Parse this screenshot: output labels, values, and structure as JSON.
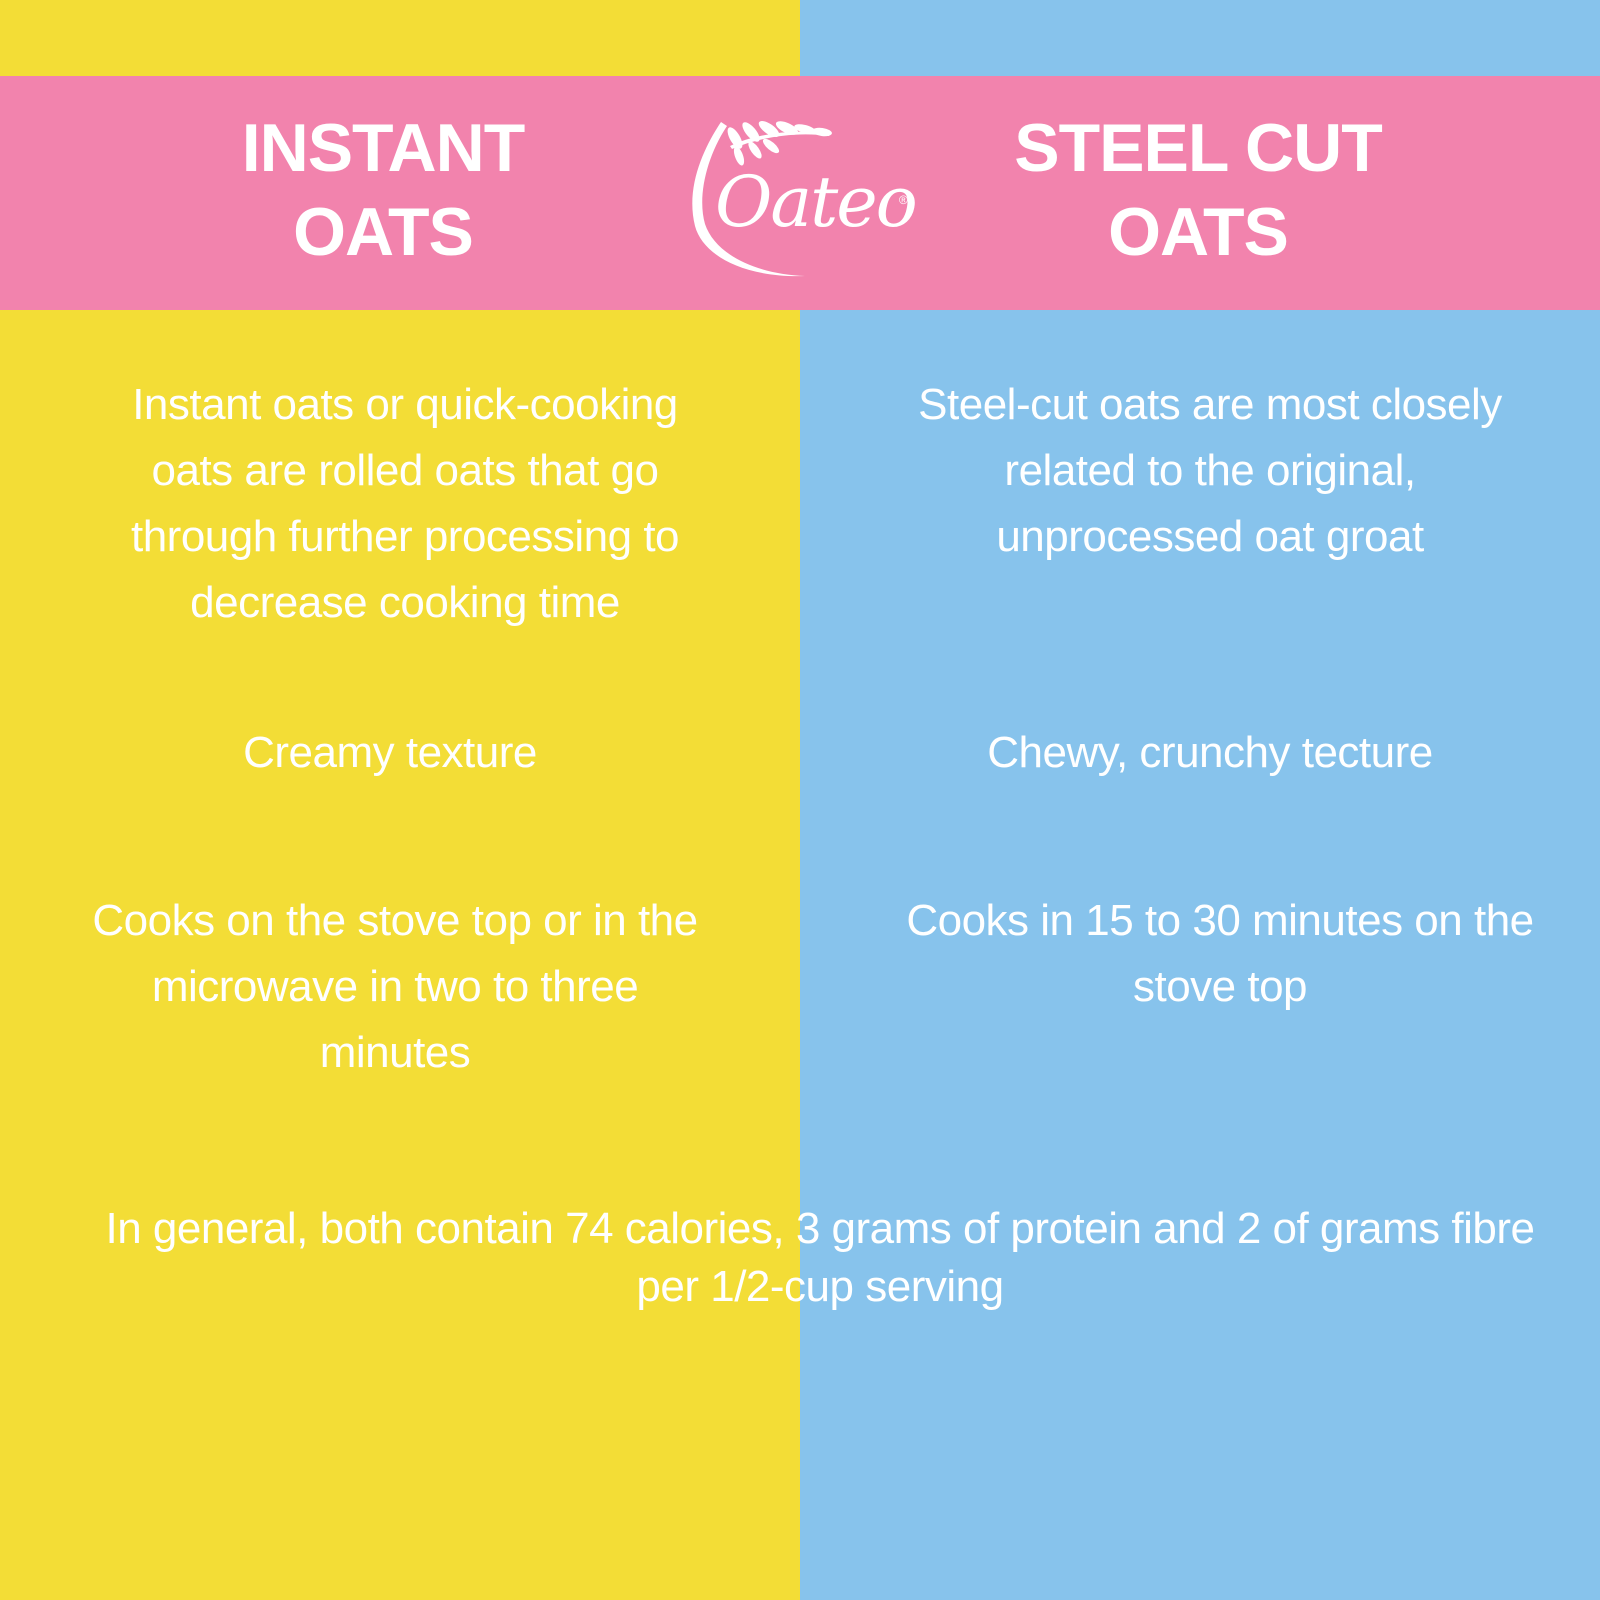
{
  "colors": {
    "left_panel": "#f3dd36",
    "right_panel": "#87c3ec",
    "banner": "#f283ad",
    "text": "#ffffff"
  },
  "header": {
    "left_title": "INSTANT\nOATS",
    "right_title": "STEEL CUT\nOATS"
  },
  "logo": {
    "wordmark": "Oateo",
    "registered": "®",
    "icon": "oat-stalk-icon"
  },
  "rows": {
    "definition": {
      "instant": "Instant oats or quick-cooking oats are rolled oats that go through further processing to decrease cooking time",
      "steel_cut": "Steel-cut oats are most closely related to the original, unprocessed oat groat"
    },
    "texture": {
      "instant": "Creamy texture",
      "steel_cut": "Chewy, crunchy tecture"
    },
    "cooking": {
      "instant": "Cooks on the stove top or in the microwave in two to three minutes",
      "steel_cut": "Cooks in 15 to 30 minutes on the stove top"
    }
  },
  "footer": {
    "note": "In general, both contain 74 calories, 3 grams of protein and 2 of grams fibre per 1/2-cup serving"
  }
}
